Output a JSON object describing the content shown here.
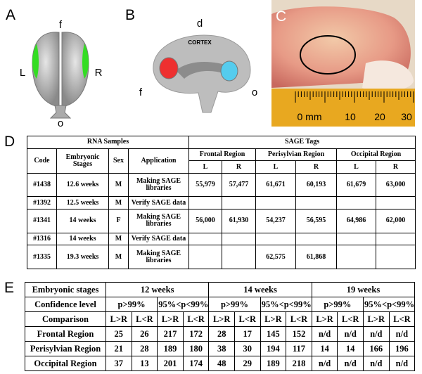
{
  "panel_a": {
    "label": "A",
    "top": "f",
    "left": "L",
    "right": "R",
    "bottom": "o"
  },
  "panel_b": {
    "label": "B",
    "top": "d",
    "region": "CORTEX",
    "front": "f",
    "back": "o"
  },
  "panel_c": {
    "label": "C",
    "ruler": [
      "0 mm",
      "10",
      "20",
      "30"
    ]
  },
  "table_d": {
    "label": "D",
    "groups": [
      "RNA Samples",
      "SAGE Tags"
    ],
    "columns": [
      "Code",
      "Embryonic Stages",
      "Sex",
      "Application"
    ],
    "regions": [
      "Frontal Region",
      "Perisylvian Region",
      "Occipital Region"
    ],
    "sides": [
      "L",
      "R",
      "L",
      "R",
      "L",
      "R"
    ],
    "rows": [
      [
        "#1438",
        "12.6 weeks",
        "M",
        "Making SAGE libraries",
        "55,979",
        "57,477",
        "61,671",
        "60,193",
        "61,679",
        "63,000"
      ],
      [
        "#1392",
        "12.5 weeks",
        "M",
        "Verify SAGE data",
        null,
        null,
        null,
        null,
        null,
        null
      ],
      [
        "#1341",
        "14 weeks",
        "F",
        "Making SAGE libraries",
        "56,000",
        "61,930",
        "54,237",
        "56,595",
        "64,986",
        "62,000"
      ],
      [
        "#1316",
        "14 weeks",
        "M",
        "Verify SAGE data",
        null,
        null,
        null,
        null,
        null,
        null
      ],
      [
        "#1335",
        "19.3 weeks",
        "M",
        "Making SAGE libraries",
        null,
        null,
        "62,575",
        "61,868",
        null,
        null
      ]
    ]
  },
  "table_e": {
    "label": "E",
    "header": [
      "Embryonic stages",
      "12 weeks",
      "14 weeks",
      "19 weeks"
    ],
    "confidence": [
      "Confidence level",
      "p>99%",
      "95%<p<99%",
      "p>99%",
      "95%<p<99%",
      "p>99%",
      "95%<p<99%"
    ],
    "comparison": [
      "Comparison",
      "L>R",
      "L<R",
      "L>R",
      "L<R",
      "L>R",
      "L<R",
      "L>R",
      "L<R",
      "L>R",
      "L<R",
      "L>R",
      "L<R"
    ],
    "rows": [
      [
        "Frontal Region",
        "25",
        "26",
        "217",
        "172",
        "28",
        "17",
        "145",
        "152",
        "n/d",
        "n/d",
        "n/d",
        "n/d"
      ],
      [
        "Perisylvian Region",
        "21",
        "28",
        "189",
        "180",
        "38",
        "30",
        "194",
        "117",
        "14",
        "14",
        "166",
        "196"
      ],
      [
        "Occipital Region",
        "37",
        "13",
        "201",
        "174",
        "48",
        "29",
        "189",
        "218",
        "n/d",
        "n/d",
        "n/d",
        "n/d"
      ]
    ]
  }
}
